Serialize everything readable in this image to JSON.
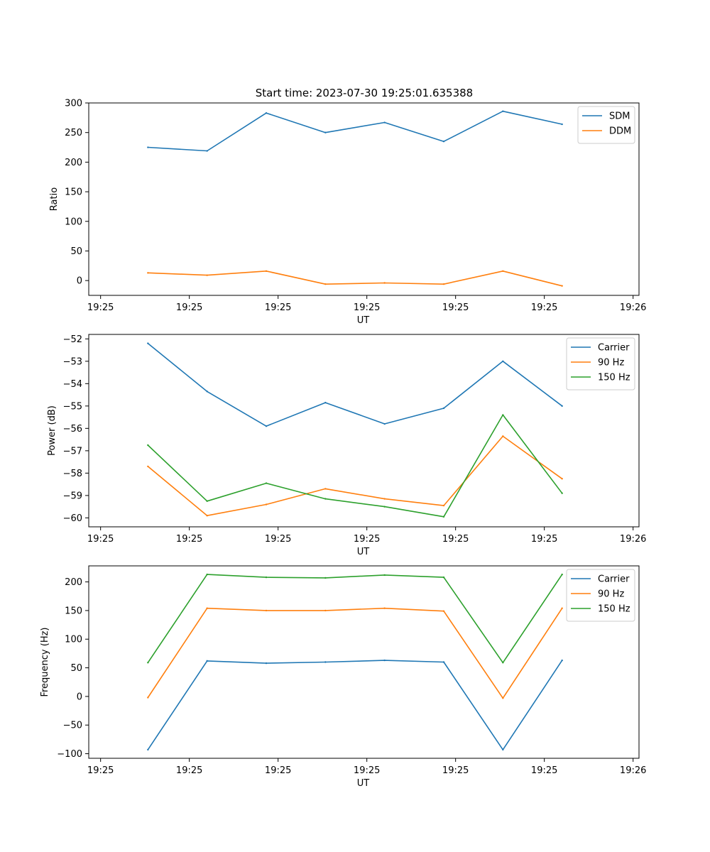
{
  "figure_title": "Start time: 2023-07-30 19:25:01.635388",
  "colors": {
    "c1": "#1f77b4",
    "c2": "#ff7f0e",
    "c3": "#2ca02c"
  },
  "chart_data": [
    {
      "type": "line",
      "title": "Start time: 2023-07-30 19:25:01.635388",
      "xlabel": "UT",
      "ylabel": "Ratio",
      "x_tick_labels": [
        "19:25",
        "19:25",
        "19:25",
        "19:25",
        "19:25",
        "19:25",
        "19:26"
      ],
      "x": [
        1,
        2,
        3,
        4,
        5,
        6,
        7,
        8
      ],
      "xlim": [
        0,
        9.3
      ],
      "ylim": [
        -25,
        300
      ],
      "yticks": [
        0,
        50,
        100,
        150,
        200,
        250,
        300
      ],
      "legend": "top-right",
      "series": [
        {
          "name": "SDM",
          "color": "#1f77b4",
          "values": [
            225,
            219,
            283,
            250,
            267,
            235,
            286,
            264
          ]
        },
        {
          "name": "DDM",
          "color": "#ff7f0e",
          "values": [
            13,
            9,
            16,
            -6,
            -4,
            -6,
            16,
            -9
          ]
        }
      ]
    },
    {
      "type": "line",
      "xlabel": "UT",
      "ylabel": "Power (dB)",
      "x_tick_labels": [
        "19:25",
        "19:25",
        "19:25",
        "19:25",
        "19:25",
        "19:25",
        "19:26"
      ],
      "x": [
        1,
        2,
        3,
        4,
        5,
        6,
        7,
        8
      ],
      "xlim": [
        0,
        9.3
      ],
      "ylim": [
        -60.4,
        -51.8
      ],
      "yticks": [
        -60,
        -59,
        -58,
        -57,
        -56,
        -55,
        -54,
        -53,
        -52
      ],
      "legend": "top-right",
      "series": [
        {
          "name": "Carrier",
          "color": "#1f77b4",
          "values": [
            -52.2,
            -54.35,
            -55.9,
            -54.85,
            -55.8,
            -55.1,
            -53.0,
            -55.0
          ]
        },
        {
          "name": "90 Hz",
          "color": "#ff7f0e",
          "values": [
            -57.7,
            -59.9,
            -59.4,
            -58.7,
            -59.15,
            -59.45,
            -56.35,
            -58.25
          ]
        },
        {
          "name": "150 Hz",
          "color": "#2ca02c",
          "values": [
            -56.75,
            -59.25,
            -58.45,
            -59.15,
            -59.5,
            -59.95,
            -55.4,
            -58.9
          ]
        }
      ]
    },
    {
      "type": "line",
      "xlabel": "UT",
      "ylabel": "Frequency (Hz)",
      "x_tick_labels": [
        "19:25",
        "19:25",
        "19:25",
        "19:25",
        "19:25",
        "19:25",
        "19:26"
      ],
      "x": [
        1,
        2,
        3,
        4,
        5,
        6,
        7,
        8
      ],
      "xlim": [
        0,
        9.3
      ],
      "ylim": [
        -108,
        228
      ],
      "yticks": [
        -100,
        -50,
        0,
        50,
        100,
        150,
        200
      ],
      "legend": "top-right",
      "series": [
        {
          "name": "Carrier",
          "color": "#1f77b4",
          "values": [
            -93,
            62,
            58,
            60,
            63,
            60,
            -93,
            63
          ]
        },
        {
          "name": "90 Hz",
          "color": "#ff7f0e",
          "values": [
            -2,
            154,
            150,
            150,
            154,
            149,
            -3,
            154
          ]
        },
        {
          "name": "150 Hz",
          "color": "#2ca02c",
          "values": [
            59,
            213,
            208,
            207,
            212,
            208,
            59,
            213
          ]
        }
      ]
    }
  ]
}
